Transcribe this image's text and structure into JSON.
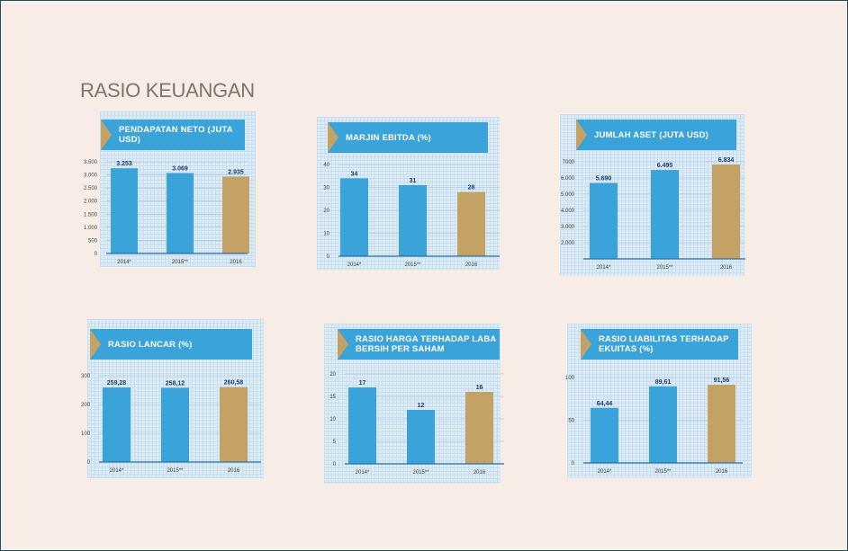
{
  "page": {
    "title": "RASIO KEUANGAN"
  },
  "colors": {
    "bar_prior": "#3aa3d9",
    "bar_current": "#c4a164",
    "banner": "#3aa3d9",
    "notch": "#c4a164",
    "axis_text": "#444",
    "label_text": "#1f3f6a"
  },
  "chart_data": [
    {
      "type": "bar",
      "title": "PENDAPATAN NETO (JUTA USD)",
      "categories": [
        "2014*",
        "2015**",
        "2016"
      ],
      "values": [
        3253,
        3069,
        2935
      ],
      "value_labels": [
        "3.253",
        "3.069",
        "2.935"
      ],
      "ylim": [
        0,
        3500
      ],
      "yticks": [
        0,
        500,
        1000,
        1500,
        2000,
        2500,
        3000,
        3500
      ],
      "ytick_labels": [
        "0",
        "500",
        "1.000",
        "1.500",
        "2.000",
        "2.500",
        "3.000",
        "3.500"
      ]
    },
    {
      "type": "bar",
      "title": "MARJIN EBITDA (%)",
      "categories": [
        "2014*",
        "2015**",
        "2016"
      ],
      "values": [
        34,
        31,
        28
      ],
      "value_labels": [
        "34",
        "31",
        "28"
      ],
      "ylim": [
        0,
        40
      ],
      "yticks": [
        0,
        10,
        20,
        30,
        40
      ],
      "ytick_labels": [
        "0",
        "10",
        "20",
        "30",
        "40"
      ]
    },
    {
      "type": "bar",
      "title": "JUMLAH ASET (JUTA USD)",
      "categories": [
        "2014*",
        "2015**",
        "2016"
      ],
      "values": [
        5690,
        6495,
        6834
      ],
      "value_labels": [
        "5.690",
        "6.495",
        "6.834"
      ],
      "ylim": [
        1000,
        7000
      ],
      "yticks": [
        2000,
        3000,
        4000,
        5000,
        6000,
        7000
      ],
      "ytick_labels": [
        "2.000",
        "3.000",
        "4.000",
        "5.000",
        "6.000",
        "7000"
      ]
    },
    {
      "type": "bar",
      "title": "RASIO LANCAR (%)",
      "categories": [
        "2014*",
        "2015**",
        "2016"
      ],
      "values": [
        259.28,
        258.12,
        260.58
      ],
      "value_labels": [
        "259,28",
        "258,12",
        "260,58"
      ],
      "ylim": [
        0,
        300
      ],
      "yticks": [
        0,
        100,
        200,
        300
      ],
      "ytick_labels": [
        "0",
        "100",
        "200",
        "300"
      ]
    },
    {
      "type": "bar",
      "title": "RASIO HARGA TERHADAP LABA BERSIH PER SAHAM",
      "categories": [
        "2014*",
        "2015**",
        "2016"
      ],
      "values": [
        17,
        12,
        16
      ],
      "value_labels": [
        "17",
        "12",
        "16"
      ],
      "ylim": [
        0,
        20
      ],
      "yticks": [
        0,
        5,
        10,
        15,
        20
      ],
      "ytick_labels": [
        "0",
        "5",
        "10",
        "15",
        "20"
      ]
    },
    {
      "type": "bar",
      "title": "RASIO LIABILITAS TERHADAP EKUITAS (%)",
      "categories": [
        "2014*",
        "2015**",
        "2016"
      ],
      "values": [
        64.44,
        89.61,
        91.56
      ],
      "value_labels": [
        "64,44",
        "89,61",
        "91,56"
      ],
      "ylim": [
        0,
        100
      ],
      "yticks": [
        0,
        50,
        100
      ],
      "ytick_labels": [
        "0",
        "50",
        "100"
      ]
    }
  ]
}
